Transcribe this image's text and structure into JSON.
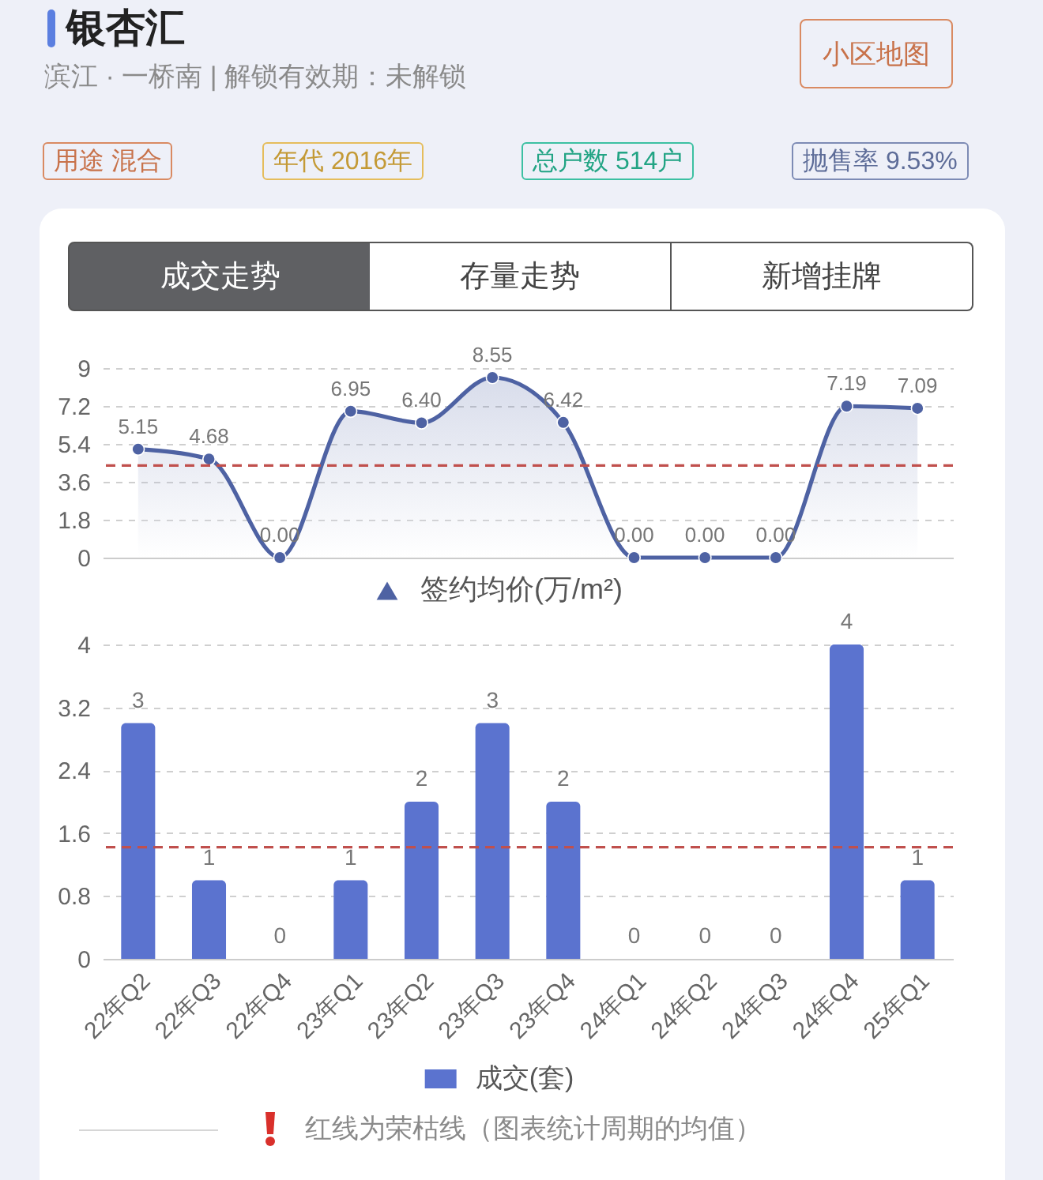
{
  "chart_data": [
    {
      "type": "other",
      "title": "银杏汇",
      "subtitle": "滨江 · 一桥南 | 解锁有效期：未解锁",
      "annotations": [
        "小区地图",
        "用途 混合",
        "年代 2016年",
        "总户数 514户",
        "抛售率 9.53%",
        "成交走势",
        "存量走势",
        "新增挂牌"
      ]
    },
    {
      "type": "area",
      "categories": [
        null,
        null,
        null,
        null,
        null,
        null,
        null,
        null,
        null,
        null,
        null,
        null
      ],
      "series": [
        {
          "name": "签约均价(万/m²)",
          "color": "#4e62a3",
          "values": [
            5.15,
            4.68,
            0,
            6.95,
            6.4,
            8.55,
            6.42,
            0,
            0,
            0,
            7.19,
            7.09
          ],
          "value_labels": [
            "5.15",
            "4.68",
            "0.00",
            "6.95",
            "6.40",
            "8.55",
            "6.42",
            "0.00",
            "0.00",
            "0.00",
            "7.19",
            "7.09"
          ]
        }
      ],
      "ylim": [
        0,
        9
      ],
      "yticks": [
        0,
        1.8,
        3.6,
        5.4,
        7.2,
        9
      ],
      "grid": "y",
      "legend": "bottom",
      "marker": "circle",
      "ref_lines": [
        {
          "axis": "y",
          "value": 4.37,
          "color": "#c0504d",
          "line_style": "dashed"
        }
      ]
    },
    {
      "type": "bar",
      "categories": [
        "22年Q2",
        "22年Q3",
        "22年Q4",
        "23年Q1",
        "23年Q2",
        "23年Q3",
        "23年Q4",
        "24年Q1",
        "24年Q2",
        "24年Q3",
        "24年Q4",
        "25年Q1"
      ],
      "series": [
        {
          "name": "成交(套)",
          "color": "#5b73cf",
          "values": [
            3,
            1,
            0,
            1,
            2,
            3,
            2,
            0,
            0,
            0,
            4,
            1
          ]
        }
      ],
      "ylim": [
        0,
        4
      ],
      "yticks": [
        0,
        0.8,
        1.6,
        2.4,
        3.2,
        4
      ],
      "grid": "y",
      "legend": "bottom",
      "data_labels": true,
      "ref_lines": [
        {
          "axis": "y",
          "value": 1.42,
          "color": "#c0504d",
          "line_style": "dashed"
        }
      ],
      "annotations": [
        "红线为荣枯线（图表统计周期的均值）"
      ]
    }
  ]
}
